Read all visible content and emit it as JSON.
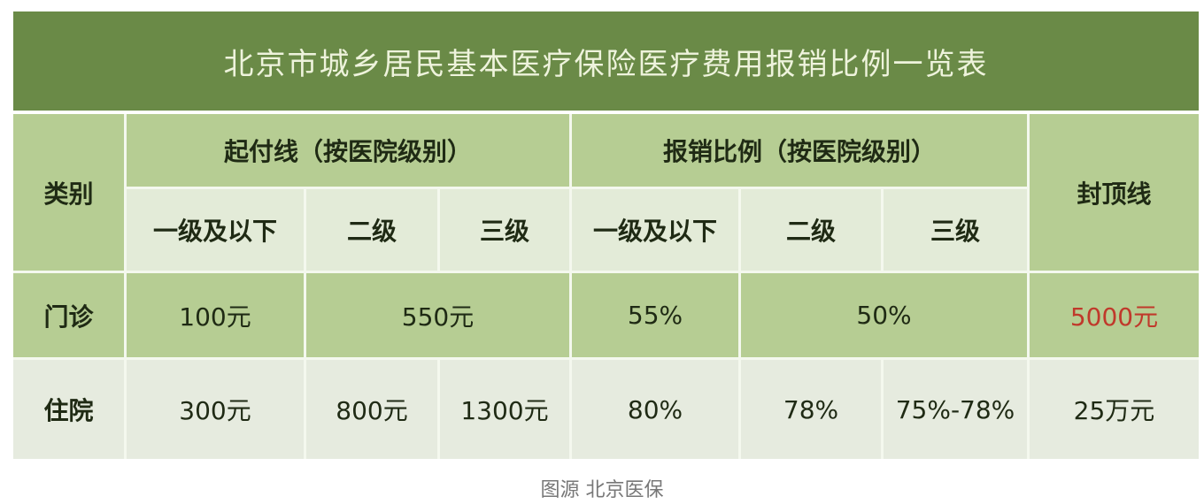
{
  "title": "北京市城乡居民基本医疗保险医疗费用报销比例一览表",
  "headers": {
    "category": "类别",
    "deductible": "起付线（按医院级别）",
    "reimbursement": "报销比例（按医院级别）",
    "cap": "封顶线",
    "levels": [
      "一级及以下",
      "二级",
      "三级"
    ]
  },
  "rows": [
    {
      "category": "门诊",
      "deductible": [
        "100元",
        "550元"
      ],
      "reimbursement": [
        "55%",
        "50%"
      ],
      "cap": "5000元"
    },
    {
      "category": "住院",
      "deductible": [
        "300元",
        "800元",
        "1300元"
      ],
      "reimbursement": [
        "80%",
        "78%",
        "75%-78%"
      ],
      "cap": "25万元"
    }
  ],
  "caption": "图源 北京医保",
  "colors": {
    "title_bg": "#6a8a47",
    "header_bg": "#b6cd93",
    "sub_header_bg": "#e3ebd8",
    "cap_highlight": "#c0392b"
  }
}
